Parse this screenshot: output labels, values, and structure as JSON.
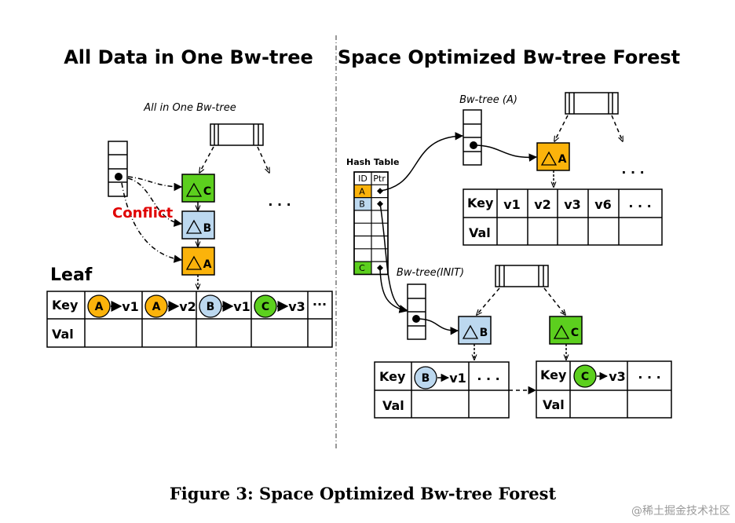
{
  "left": {
    "title": "All Data in One Bw-tree",
    "tree_label": "All in One Bw-tree",
    "conflict_label": "Conflict",
    "leaf_label": "Leaf",
    "deltas": [
      {
        "id": "C",
        "color": "#5ccf1e"
      },
      {
        "id": "B",
        "color": "#bcd8ef"
      },
      {
        "id": "A",
        "color": "#fbb30b"
      }
    ],
    "ellipsis": ". . .",
    "table": {
      "key_label": "Key",
      "val_label": "Val",
      "entries": [
        {
          "id": "A",
          "value": "v1",
          "color": "#fbb30b"
        },
        {
          "id": "A",
          "value": "v2",
          "color": "#fbb30b"
        },
        {
          "id": "B",
          "value": "v1",
          "color": "#bcd8ef"
        },
        {
          "id": "C",
          "value": "v3",
          "color": "#5ccf1e"
        }
      ],
      "more": "···"
    }
  },
  "right": {
    "title": "Space Optimized Bw-tree Forest",
    "hash_table": {
      "label": "Hash Table",
      "headers": [
        "ID",
        "Ptr"
      ],
      "rows": [
        {
          "id": "A",
          "color": "#fbb30b"
        },
        {
          "id": "B",
          "color": "#bcd8ef"
        },
        {
          "id": "",
          "color": ""
        },
        {
          "id": "",
          "color": ""
        },
        {
          "id": "",
          "color": ""
        },
        {
          "id": "",
          "color": ""
        },
        {
          "id": "C",
          "color": "#5ccf1e"
        }
      ]
    },
    "tree_a": {
      "label": "Bw-tree (A)",
      "delta": "A",
      "ellipsis": ". . .",
      "table": {
        "key_label": "Key",
        "val_label": "Val",
        "keys": [
          "v1",
          "v2",
          "v3",
          "v6"
        ],
        "more": ". . ."
      }
    },
    "tree_init": {
      "label": "Bw-tree(INIT)",
      "delta_b": "B",
      "delta_c": "C",
      "table_b": {
        "key_label": "Key",
        "val_label": "Val",
        "id": "B",
        "value": "v1",
        "more": ". . ."
      },
      "table_c": {
        "key_label": "Key",
        "val_label": "Val",
        "id": "C",
        "value": "v3",
        "more": ". . ."
      }
    }
  },
  "caption": "Figure 3: Space Optimized Bw-tree Forest",
  "watermark": "@稀土掘金技术社区"
}
